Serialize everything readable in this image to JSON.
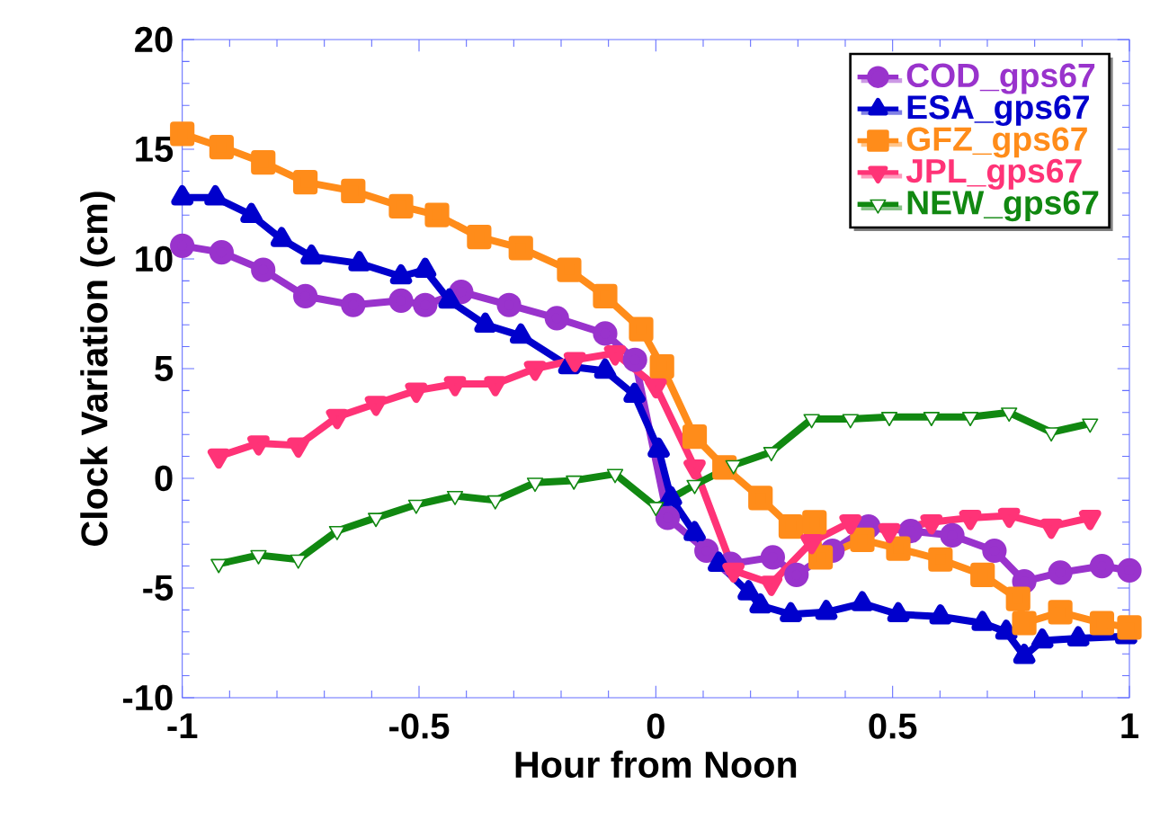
{
  "chart_data": {
    "type": "line",
    "xlabel": "Hour from Noon",
    "ylabel": "Clock Variation (cm)",
    "xlim": [
      -1,
      1
    ],
    "xticks": [
      -1,
      -0.5,
      0,
      0.5,
      1
    ],
    "ylim": [
      -10,
      20
    ],
    "yticks": [
      -10,
      -5,
      0,
      5,
      10,
      15,
      20
    ],
    "grid": false,
    "legend": "top right",
    "line_style": "solid",
    "series": [
      {
        "name": "COD_gps67",
        "color": "#9933cc",
        "marker": "circle",
        "x": [
          -1,
          -0.917,
          -0.829,
          -0.74,
          -0.639,
          -0.538,
          -0.487,
          -0.411,
          -0.31,
          -0.209,
          -0.107,
          -0.044,
          0.025,
          0.107,
          0.158,
          0.247,
          0.297,
          0.373,
          0.449,
          0.538,
          0.626,
          0.715,
          0.778,
          0.854,
          0.942,
          1.0
        ],
        "values": [
          10.6,
          10.3,
          9.5,
          8.3,
          7.9,
          8.1,
          7.9,
          8.5,
          7.9,
          7.3,
          6.6,
          5.4,
          -1.8,
          -3.3,
          -3.9,
          -3.6,
          -4.4,
          -3.3,
          -2.2,
          -2.4,
          -2.6,
          -3.3,
          -4.7,
          -4.3,
          -4.0,
          -4.2
        ]
      },
      {
        "name": "ESA_gps67",
        "color": "#0000cc",
        "marker": "triangle",
        "x": [
          -1,
          -0.93,
          -0.854,
          -0.79,
          -0.727,
          -0.626,
          -0.538,
          -0.487,
          -0.436,
          -0.36,
          -0.285,
          -0.183,
          -0.107,
          -0.045,
          0.006,
          0.032,
          0.082,
          0.133,
          0.196,
          0.221,
          0.285,
          0.36,
          0.436,
          0.512,
          0.601,
          0.69,
          0.74,
          0.778,
          0.816,
          0.892,
          0.993
        ],
        "values": [
          12.8,
          12.8,
          12.0,
          10.9,
          10.1,
          9.8,
          9.2,
          9.5,
          8.1,
          7.0,
          6.5,
          5.1,
          4.9,
          3.8,
          1.3,
          -0.9,
          -2.5,
          -3.9,
          -5.2,
          -5.8,
          -6.2,
          -6.1,
          -5.7,
          -6.2,
          -6.3,
          -6.6,
          -7.0,
          -8.1,
          -7.4,
          -7.3,
          -7.2
        ]
      },
      {
        "name": "GFZ_gps67",
        "color": "#ff8c1a",
        "marker": "square",
        "x": [
          -1,
          -0.917,
          -0.829,
          -0.74,
          -0.639,
          -0.538,
          -0.462,
          -0.373,
          -0.285,
          -0.183,
          -0.107,
          -0.031,
          0.013,
          0.082,
          0.145,
          0.221,
          0.285,
          0.335,
          0.348,
          0.436,
          0.512,
          0.601,
          0.69,
          0.765,
          0.778,
          0.854,
          0.942,
          1.0
        ],
        "values": [
          15.7,
          15.1,
          14.4,
          13.5,
          13.1,
          12.4,
          12.0,
          11.0,
          10.5,
          9.5,
          8.3,
          6.8,
          5.1,
          1.9,
          0.5,
          -0.9,
          -2.2,
          -2.0,
          -3.6,
          -2.8,
          -3.2,
          -3.7,
          -4.4,
          -5.5,
          -6.6,
          -6.1,
          -6.6,
          -6.8
        ]
      },
      {
        "name": "JPL_gps67",
        "color": "#ff3377",
        "marker": "triangle-down",
        "x": [
          -0.923,
          -0.839,
          -0.755,
          -0.673,
          -0.591,
          -0.506,
          -0.424,
          -0.339,
          -0.255,
          -0.171,
          -0.086,
          0,
          0.082,
          0.164,
          0.244,
          0.329,
          0.411,
          0.493,
          0.582,
          0.664,
          0.746,
          0.835,
          0.917
        ],
        "values": [
          1.0,
          1.6,
          1.5,
          2.8,
          3.4,
          4.0,
          4.3,
          4.3,
          5.0,
          5.4,
          5.7,
          4.2,
          0.5,
          -4.2,
          -4.8,
          -2.9,
          -2.0,
          -2.4,
          -2.0,
          -1.8,
          -1.7,
          -2.2,
          -1.8
        ]
      },
      {
        "name": "NEW_gps67",
        "color": "#118811",
        "marker": "triangle-down-open",
        "x": [
          -0.923,
          -0.839,
          -0.755,
          -0.673,
          -0.591,
          -0.506,
          -0.424,
          -0.339,
          -0.255,
          -0.173,
          -0.086,
          0,
          0.082,
          0.164,
          0.244,
          0.329,
          0.411,
          0.493,
          0.582,
          0.664,
          0.746,
          0.835,
          0.917
        ],
        "values": [
          -3.9,
          -3.5,
          -3.7,
          -2.4,
          -1.8,
          -1.2,
          -0.8,
          -1.0,
          -0.2,
          -0.1,
          0.2,
          -1.3,
          -0.3,
          0.6,
          1.2,
          2.7,
          2.7,
          2.8,
          2.8,
          2.8,
          3.0,
          2.1,
          2.5
        ]
      }
    ]
  }
}
